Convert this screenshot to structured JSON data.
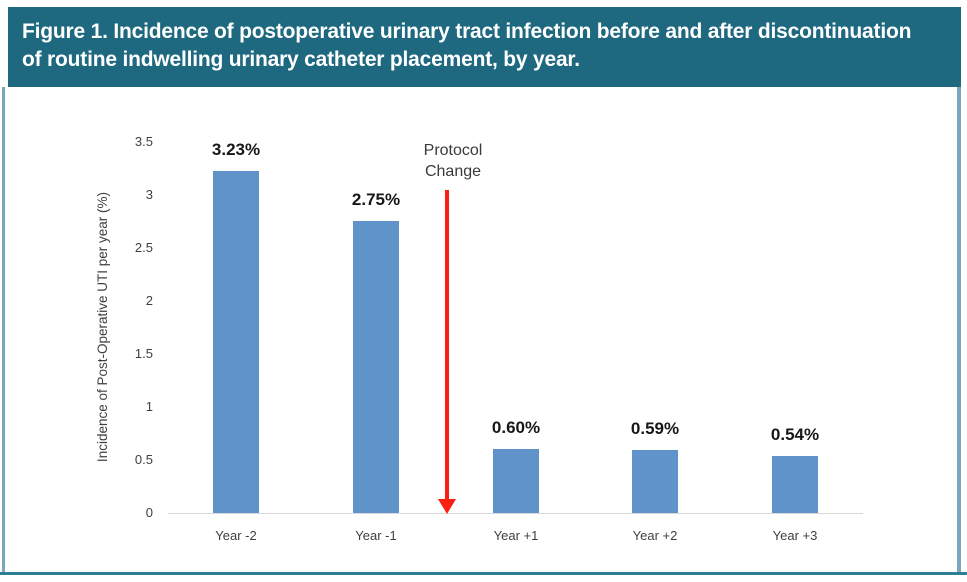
{
  "figure": {
    "caption_lines": [
      "Figure 1. Incidence of postoperative urinary tract infection before and after discontinuation",
      "of routine indwelling urinary catheter placement, by year."
    ]
  },
  "chart_data": {
    "type": "bar",
    "title": "",
    "categories": [
      "Year -2",
      "Year -1",
      "Year +1",
      "Year +2",
      "Year +3"
    ],
    "values": [
      3.23,
      2.75,
      0.6,
      0.59,
      0.54
    ],
    "bar_labels": [
      "3.23%",
      "2.75%",
      "0.60%",
      "0.59%",
      "0.54%"
    ],
    "xlabel": "",
    "ylabel": "Incidence of Post-Operative UTI per year (%)",
    "ylim": [
      0,
      3.5
    ],
    "yticks": [
      0,
      0.5,
      1,
      1.5,
      2,
      2.5,
      3,
      3.5
    ],
    "ytick_labels": [
      "0",
      "0.5",
      "1",
      "1.5",
      "2",
      "2.5",
      "3",
      "3.5"
    ],
    "grid": false,
    "legend_position": "none",
    "annotation": {
      "lines": [
        "Protocol",
        "Change"
      ],
      "arrow": "red-vertical-arrow-down-to-baseline-between-Year-1-and-Year+1"
    }
  },
  "colors": {
    "banner_background": "#1E6880",
    "banner_text": "#FFFFFF",
    "bar_fill": "#5F93C9",
    "arrow_red": "#FB2013",
    "panel_border": "#7BA6BB",
    "bottom_rule": "#2E7E96",
    "axis_line": "#D9D9D9",
    "axis_text": "#3F3F3F"
  }
}
